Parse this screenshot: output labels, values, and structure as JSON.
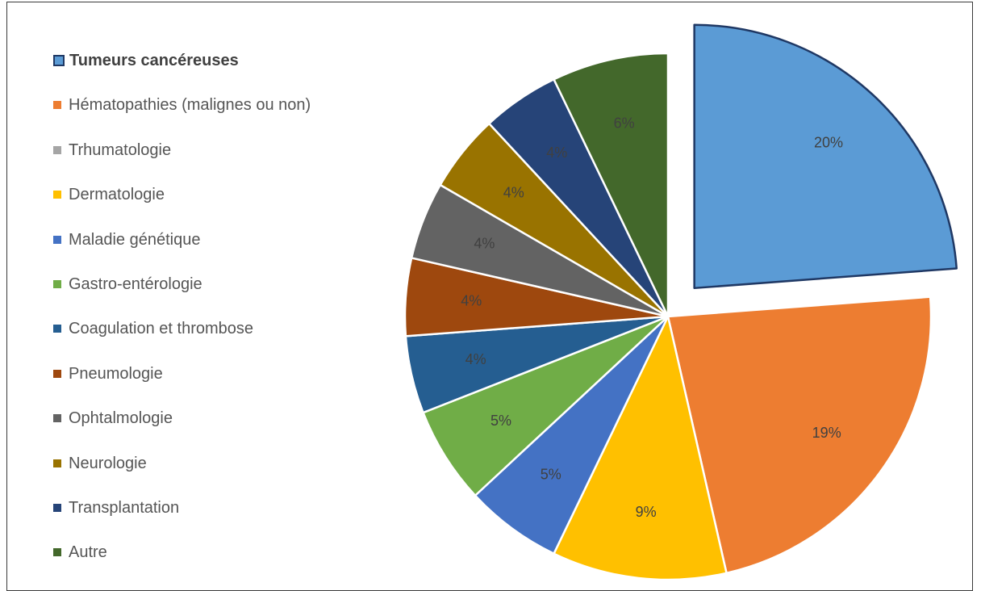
{
  "chart_data": {
    "type": "pie",
    "title": "",
    "selected_slice": "Tumeurs cancéreuses",
    "exploded_slice": "Tumeurs cancéreuses",
    "legend_position": "left",
    "start_direction": "12 o'clock, clockwise",
    "slices": [
      {
        "name": "Tumeurs cancéreuses",
        "value": 20,
        "label": "20%",
        "color": "#5b9bd5"
      },
      {
        "name": "Hématopathies (malignes ou non)",
        "value": 19,
        "label": "19%",
        "color": "#ed7d31"
      },
      {
        "name": "Trhumatologie",
        "value": 0,
        "label": "",
        "color": "#a5a5a5"
      },
      {
        "name": "Dermatologie",
        "value": 9,
        "label": "9%",
        "color": "#ffc000"
      },
      {
        "name": "Maladie génétique",
        "value": 5,
        "label": "5%",
        "color": "#4472c4"
      },
      {
        "name": "Gastro-entérologie",
        "value": 5,
        "label": "5%",
        "color": "#70ad47"
      },
      {
        "name": "Coagulation et thrombose",
        "value": 4,
        "label": "4%",
        "color": "#255e91"
      },
      {
        "name": "Pneumologie",
        "value": 4,
        "label": "4%",
        "color": "#9e480e"
      },
      {
        "name": "Ophtalmologie",
        "value": 4,
        "label": "4%",
        "color": "#636363"
      },
      {
        "name": "Neurologie",
        "value": 4,
        "label": "4%",
        "color": "#997300"
      },
      {
        "name": "Transplantation",
        "value": 4,
        "label": "4%",
        "color": "#264478"
      },
      {
        "name": "Autre",
        "value": 6,
        "label": "6%",
        "color": "#43682b"
      }
    ]
  }
}
